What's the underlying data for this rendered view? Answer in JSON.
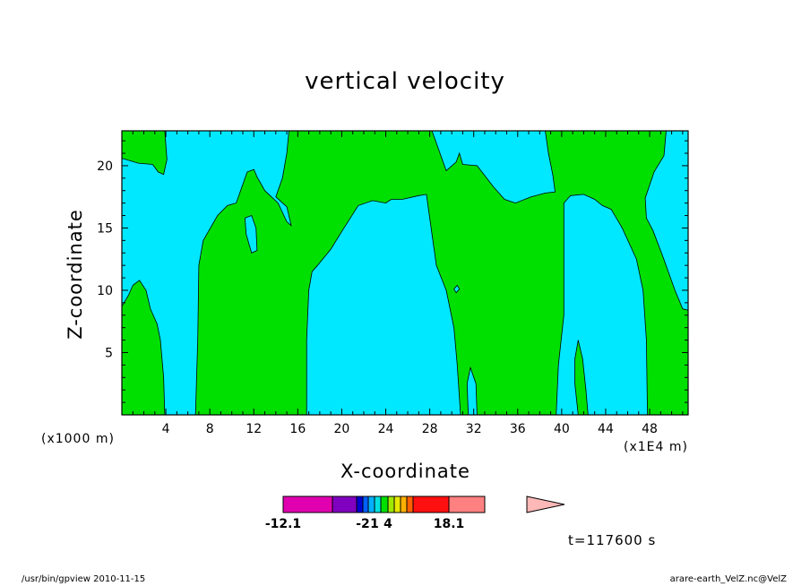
{
  "chart_data": {
    "type": "contour",
    "title": "vertical velocity",
    "xlabel": "X-coordinate",
    "ylabel": "Z-coordinate",
    "x_unit_left": "(x1000 m)",
    "x_unit_right": "(x1E4 m)",
    "xlim": [
      0,
      51.5
    ],
    "ylim": [
      0,
      22.8
    ],
    "x_ticks": [
      4,
      8,
      12,
      16,
      20,
      24,
      28,
      32,
      36,
      40,
      44,
      48
    ],
    "y_ticks": [
      5,
      10,
      15,
      20
    ],
    "fill_colors": {
      "negative": "#00e8ff",
      "positive": "#00e000"
    },
    "positive_regions": [
      {
        "name": "left-upper",
        "points": [
          [
            0,
            22.8
          ],
          [
            3.9,
            22.8
          ],
          [
            4.1,
            20.5
          ],
          [
            3.8,
            19.3
          ],
          [
            3.3,
            19.5
          ],
          [
            2.8,
            20.1
          ],
          [
            1.5,
            20.2
          ],
          [
            0,
            20.6
          ]
        ]
      },
      {
        "name": "left-lower",
        "points": [
          [
            0,
            0
          ],
          [
            3.9,
            0
          ],
          [
            3.8,
            3
          ],
          [
            3.5,
            6
          ],
          [
            3.2,
            7.3
          ],
          [
            2.6,
            8.5
          ],
          [
            2.2,
            10
          ],
          [
            1.6,
            10.8
          ],
          [
            1.0,
            10.4
          ],
          [
            0.6,
            9.6
          ],
          [
            0,
            8.7
          ]
        ]
      },
      {
        "name": "main-a",
        "points": [
          [
            6.7,
            0
          ],
          [
            16.8,
            0
          ],
          [
            16.8,
            6
          ],
          [
            17.0,
            10
          ],
          [
            17.3,
            11.5
          ],
          [
            17.8,
            12
          ],
          [
            19.0,
            13.3
          ],
          [
            20.2,
            15.0
          ],
          [
            21.5,
            16.8
          ],
          [
            22.8,
            17.2
          ],
          [
            24.0,
            17.0
          ],
          [
            24.5,
            17.3
          ],
          [
            25.5,
            17.3
          ],
          [
            27.0,
            17.6
          ],
          [
            27.7,
            17.7
          ],
          [
            28.6,
            12
          ],
          [
            29.5,
            10
          ],
          [
            30.2,
            7
          ],
          [
            30.5,
            4
          ],
          [
            30.8,
            0
          ],
          [
            31.5,
            0
          ],
          [
            31.4,
            2.5
          ],
          [
            31.7,
            3.8
          ],
          [
            32.2,
            2.5
          ],
          [
            32.3,
            0
          ],
          [
            39.5,
            0
          ],
          [
            39.7,
            4
          ],
          [
            40.2,
            8
          ],
          [
            40.2,
            17.0
          ],
          [
            40.8,
            17.6
          ],
          [
            42.0,
            17.7
          ],
          [
            43.0,
            17.3
          ],
          [
            43.7,
            16.8
          ],
          [
            44.5,
            16.5
          ],
          [
            45.5,
            15.0
          ],
          [
            46.8,
            12.5
          ],
          [
            47.4,
            10
          ],
          [
            47.7,
            6
          ],
          [
            47.8,
            0
          ],
          [
            51.5,
            0
          ],
          [
            51.5,
            8.4
          ],
          [
            51.0,
            8.5
          ],
          [
            50.3,
            10
          ],
          [
            49.2,
            12.7
          ],
          [
            48.3,
            14.8
          ],
          [
            47.7,
            15.8
          ],
          [
            47.6,
            17.4
          ],
          [
            48.4,
            19.5
          ],
          [
            49.3,
            20.8
          ],
          [
            49.5,
            22.8
          ],
          [
            38.5,
            22.8
          ],
          [
            38.8,
            21
          ],
          [
            39.2,
            19.2
          ],
          [
            39.4,
            17.9
          ],
          [
            38.5,
            17.8
          ],
          [
            37.2,
            17.5
          ],
          [
            35.8,
            17.0
          ],
          [
            34.8,
            17.3
          ],
          [
            33.8,
            18.3
          ],
          [
            32.3,
            20.0
          ],
          [
            31.0,
            20.1
          ],
          [
            30.7,
            21.0
          ],
          [
            30.4,
            20.3
          ],
          [
            29.5,
            19.6
          ],
          [
            28.2,
            22.8
          ],
          [
            15.2,
            22.8
          ],
          [
            15.0,
            21.0
          ],
          [
            14.6,
            19.0
          ],
          [
            14.0,
            17.5
          ],
          [
            15.0,
            16.7
          ],
          [
            15.4,
            15.2
          ],
          [
            15.0,
            15.5
          ],
          [
            14.2,
            17.0
          ],
          [
            13.0,
            18.0
          ],
          [
            12.3,
            19.1
          ],
          [
            12.0,
            19.7
          ],
          [
            11.4,
            19.5
          ],
          [
            10.8,
            18.0
          ],
          [
            10.4,
            17.0
          ],
          [
            9.6,
            16.8
          ],
          [
            8.7,
            16.0
          ],
          [
            7.4,
            14.0
          ],
          [
            7.0,
            12.0
          ],
          [
            6.9,
            6
          ],
          [
            6.8,
            3
          ]
        ]
      },
      {
        "name": "spike-41",
        "points": [
          [
            41.5,
            0
          ],
          [
            42.4,
            0
          ],
          [
            42.2,
            2
          ],
          [
            41.9,
            4.5
          ],
          [
            41.5,
            6.0
          ],
          [
            41.2,
            4.5
          ],
          [
            41.2,
            2.5
          ]
        ]
      }
    ],
    "negative_islands": [
      {
        "name": "island-12",
        "points": [
          [
            11.2,
            15.8
          ],
          [
            11.8,
            16.0
          ],
          [
            12.2,
            15.0
          ],
          [
            12.3,
            13.2
          ],
          [
            11.8,
            13.0
          ],
          [
            11.3,
            14.5
          ]
        ]
      },
      {
        "name": "island-30",
        "points": [
          [
            30.2,
            10.1
          ],
          [
            30.5,
            10.4
          ],
          [
            30.7,
            10.1
          ],
          [
            30.4,
            9.8
          ]
        ]
      }
    ],
    "colorbar": {
      "colors": [
        "#e000b0",
        "#8000c0",
        "#0000d0",
        "#0060ff",
        "#00b0ff",
        "#00e0e0",
        "#00e000",
        "#a0e800",
        "#e8e800",
        "#ffb000",
        "#ff6000",
        "#ff1010",
        "#ff8080",
        "#ffb8b8"
      ],
      "labels": [
        "-12.1",
        "-2",
        "1",
        "4",
        "18.1"
      ],
      "label_anchor_segments": [
        0,
        3,
        5,
        7,
        12
      ]
    },
    "time_label": "t=117600 s"
  },
  "footer": {
    "left": "/usr/bin/gpview 2010-11-15",
    "right": "arare-earth_VelZ.nc@VelZ"
  }
}
